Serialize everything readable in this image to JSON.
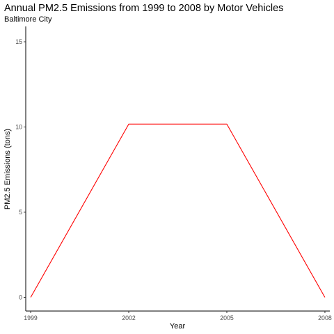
{
  "chart_data": {
    "type": "line",
    "title": "Annual PM2.5 Emissions from 1999 to 2008 by Motor Vehicles",
    "subtitle": "Baltimore City",
    "xlabel": "Year",
    "ylabel": "PM2.5 Emissions (tons)",
    "x": [
      1999,
      2002,
      2005,
      2008
    ],
    "series": [
      {
        "values": [
          0,
          10.17,
          10.17,
          0
        ],
        "color": "#ff0000"
      }
    ],
    "xlim": [
      1998.85,
      2008.15
    ],
    "ylim": [
      -0.8,
      15.9
    ],
    "x_ticks": [
      "1999",
      "2002",
      "2005",
      "2008"
    ],
    "y_ticks": [
      "0",
      "5",
      "10",
      "15"
    ],
    "grid": false,
    "legend": "none"
  }
}
